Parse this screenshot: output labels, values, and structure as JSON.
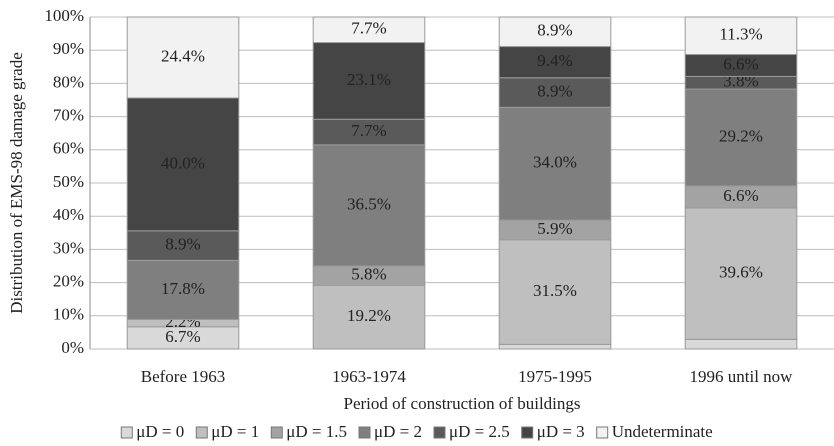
{
  "chart_data": {
    "type": "stacked_bar",
    "y_label": "Distribution of EMS-98 damage grade",
    "x_label": "Period of construction of buildings",
    "categories": [
      "Before 1963",
      "1963-1974",
      "1975-1995",
      "1996 until now"
    ],
    "series": [
      {
        "name": "μD = 0",
        "color": "#d9d9d9",
        "values": [
          6.7,
          0,
          1.4,
          2.9
        ],
        "value_labels": [
          "6.7%",
          null,
          null,
          null
        ]
      },
      {
        "name": "μD = 1",
        "color": "#bfbfbf",
        "values": [
          2.2,
          19.2,
          31.5,
          39.6
        ],
        "value_labels": [
          "2.2%",
          "19.2%",
          "31.5%",
          "39.6%"
        ]
      },
      {
        "name": "μD = 1.5",
        "color": "#a3a3a3",
        "values": [
          0,
          5.8,
          5.9,
          6.6
        ],
        "value_labels": [
          null,
          "5.8%",
          "5.9%",
          "6.6%"
        ]
      },
      {
        "name": "μD = 2",
        "color": "#7f7f7f",
        "values": [
          17.8,
          36.5,
          34.0,
          29.2
        ],
        "value_labels": [
          "17.8%",
          "36.5%",
          "34.0%",
          "29.2%"
        ]
      },
      {
        "name": "μD = 2.5",
        "color": "#5a5a5a",
        "values": [
          8.9,
          7.7,
          8.9,
          3.8
        ],
        "value_labels": [
          "8.9%",
          "7.7%",
          "8.9%",
          "3.8%"
        ]
      },
      {
        "name": "μD = 3",
        "color": "#454545",
        "values": [
          40.0,
          23.1,
          9.4,
          6.6
        ],
        "value_labels": [
          "40.0%",
          "23.1%",
          "9.4%",
          "6.6%"
        ]
      },
      {
        "name": "Undeterminate",
        "color": "#f2f2f2",
        "values": [
          24.4,
          7.7,
          8.9,
          11.3
        ],
        "value_labels": [
          "24.4%",
          "7.7%",
          "8.9%",
          "11.3%"
        ]
      }
    ],
    "ylim": [
      0,
      100
    ],
    "yticks": [
      {
        "value": 0,
        "label": "0%"
      },
      {
        "value": 10,
        "label": "10%"
      },
      {
        "value": 20,
        "label": "20%"
      },
      {
        "value": 30,
        "label": "30%"
      },
      {
        "value": 40,
        "label": "40%"
      },
      {
        "value": 50,
        "label": "50%"
      },
      {
        "value": 60,
        "label": "60%"
      },
      {
        "value": 70,
        "label": "70%"
      },
      {
        "value": 80,
        "label": "80%"
      },
      {
        "value": 90,
        "label": "90%"
      },
      {
        "value": 100,
        "label": "100%"
      }
    ],
    "grid": true,
    "legend": "bottom"
  }
}
